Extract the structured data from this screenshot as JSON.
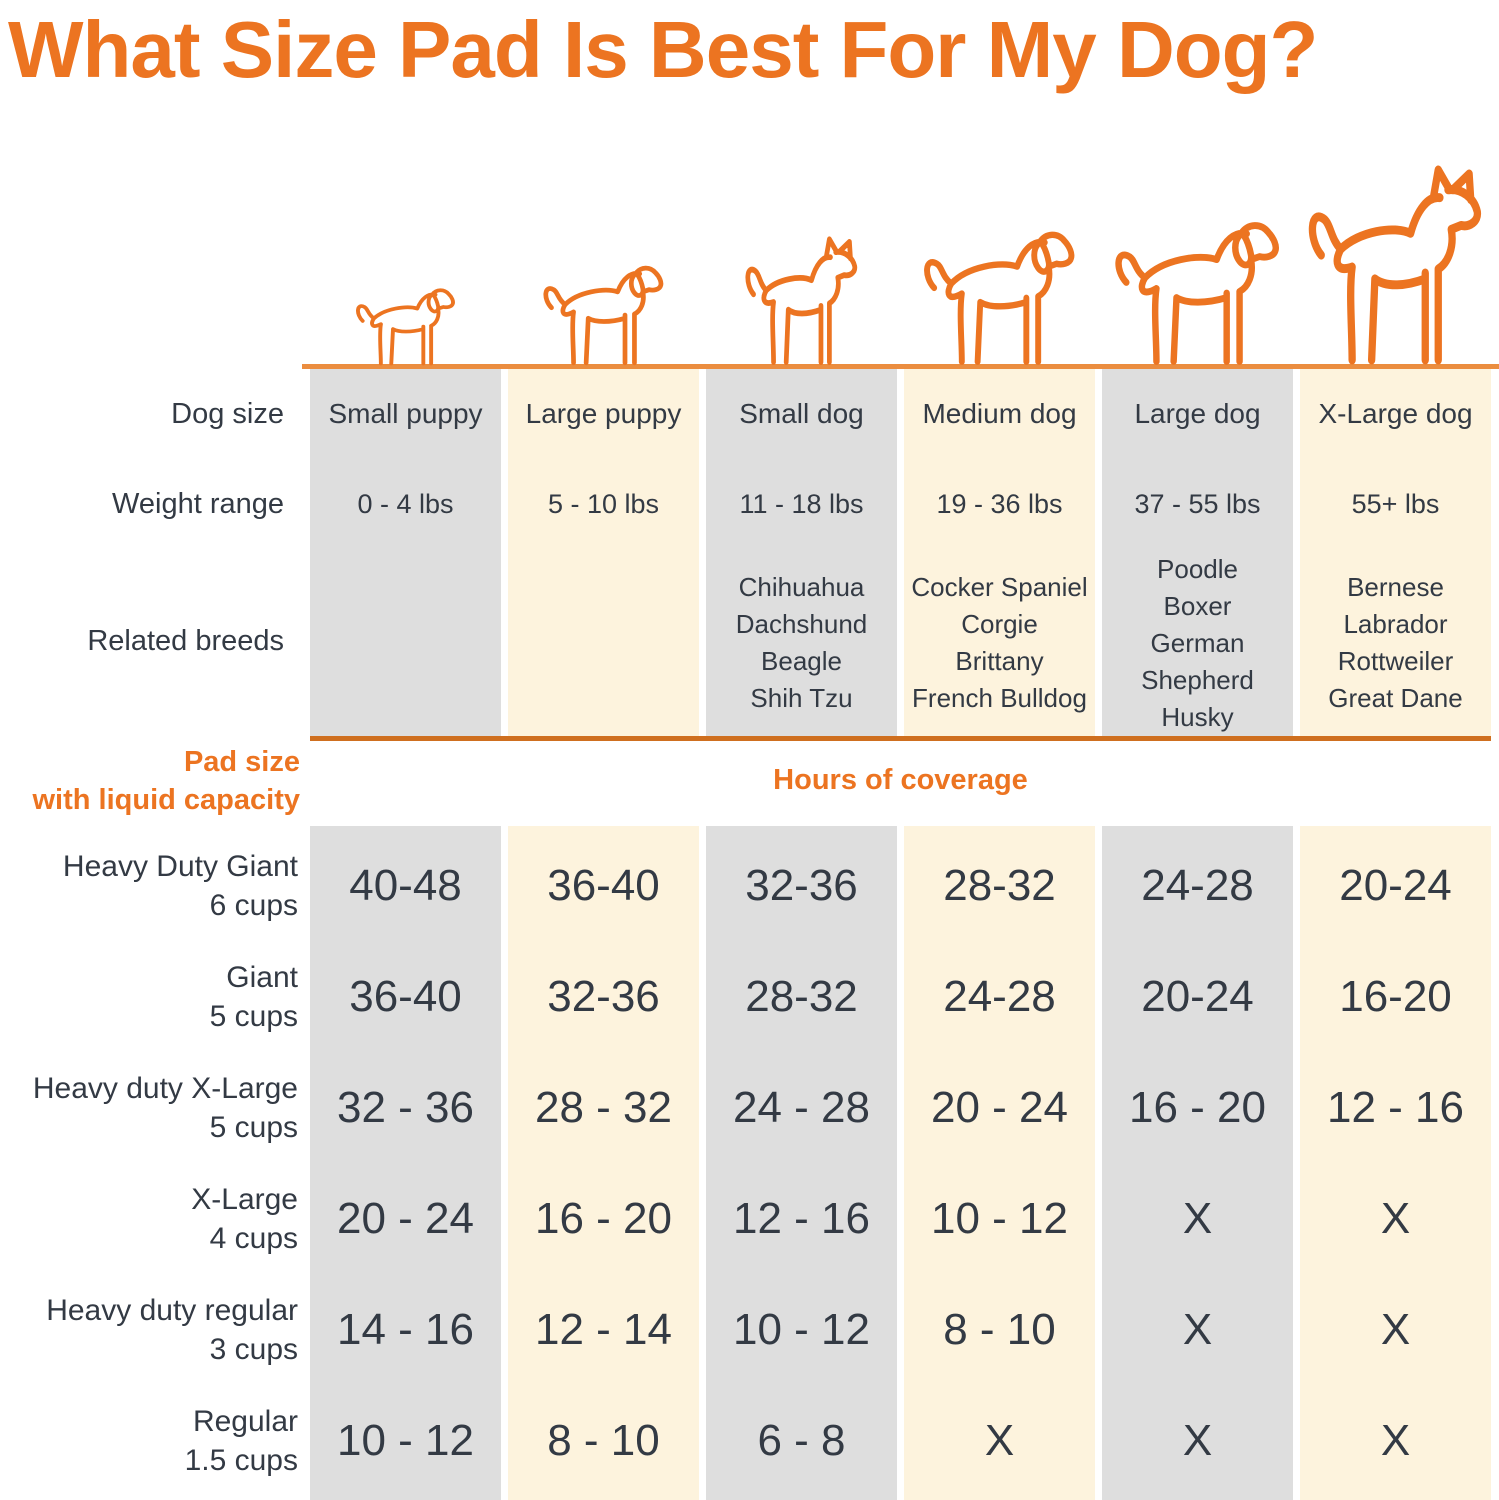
{
  "title": "What Size Pad Is Best For My Dog?",
  "colors": {
    "accent": "#ec7421",
    "ground": "#eb8d3f",
    "divider": "#cf6f1f",
    "gray_column": "#dedede",
    "cream_column": "#fdf3dd",
    "text_dark": "#333a44"
  },
  "row_headers": {
    "dog_size": "Dog size",
    "weight_range": "Weight range",
    "related_breeds": "Related breeds",
    "pad_size_line1": "Pad size",
    "pad_size_line2": "with liquid capacity"
  },
  "coverage_header": "Hours of coverage",
  "chart_data": {
    "type": "table",
    "title": "What Size Pad Is Best For My Dog?",
    "value_unit": "Hours of coverage",
    "columns": [
      {
        "size": "Small puppy",
        "weight": "0 - 4 lbs",
        "breeds": [],
        "shade": "gray",
        "dog_icon": "small-puppy-icon"
      },
      {
        "size": "Large puppy",
        "weight": "5 - 10 lbs",
        "breeds": [],
        "shade": "cream",
        "dog_icon": "large-puppy-icon"
      },
      {
        "size": "Small dog",
        "weight": "11 - 18 lbs",
        "breeds": [
          "Chihuahua",
          "Dachshund",
          "Beagle",
          "Shih Tzu"
        ],
        "shade": "gray",
        "dog_icon": "small-dog-icon"
      },
      {
        "size": "Medium dog",
        "weight": "19 - 36 lbs",
        "breeds": [
          "Cocker Spaniel",
          "Corgie",
          "Brittany",
          "French Bulldog"
        ],
        "shade": "cream",
        "dog_icon": "medium-dog-icon"
      },
      {
        "size": "Large dog",
        "weight": "37 - 55 lbs",
        "breeds": [
          "Poodle",
          "Boxer",
          "German",
          "Shepherd",
          "Husky"
        ],
        "shade": "gray",
        "dog_icon": "large-dog-icon"
      },
      {
        "size": "X-Large dog",
        "weight": "55+ lbs",
        "breeds": [
          "Bernese",
          "Labrador",
          "Rottweiler",
          "Great Dane"
        ],
        "shade": "cream",
        "dog_icon": "x-large-dog-icon"
      }
    ],
    "pad_rows": [
      {
        "name": "Heavy Duty Giant",
        "capacity": "6 cups",
        "values": [
          "40-48",
          "36-40",
          "32-36",
          "28-32",
          "24-28",
          "20-24"
        ]
      },
      {
        "name": "Giant",
        "capacity": "5 cups",
        "values": [
          "36-40",
          "32-36",
          "28-32",
          "24-28",
          "20-24",
          "16-20"
        ]
      },
      {
        "name": "Heavy duty X-Large",
        "capacity": "5 cups",
        "values": [
          "32 - 36",
          "28 - 32",
          "24 - 28",
          "20 - 24",
          "16 - 20",
          "12 - 16"
        ]
      },
      {
        "name": "X-Large",
        "capacity": "4 cups",
        "values": [
          "20 - 24",
          "16 - 20",
          "12 - 16",
          "10 - 12",
          "X",
          "X"
        ]
      },
      {
        "name": "Heavy duty regular",
        "capacity": "3 cups",
        "values": [
          "14 - 16",
          "12 - 14",
          "10 - 12",
          "8 - 10",
          "X",
          "X"
        ]
      },
      {
        "name": "Regular",
        "capacity": "1.5 cups",
        "values": [
          "10 - 12",
          "8 - 10",
          "6 - 8",
          "X",
          "X",
          "X"
        ]
      }
    ]
  }
}
